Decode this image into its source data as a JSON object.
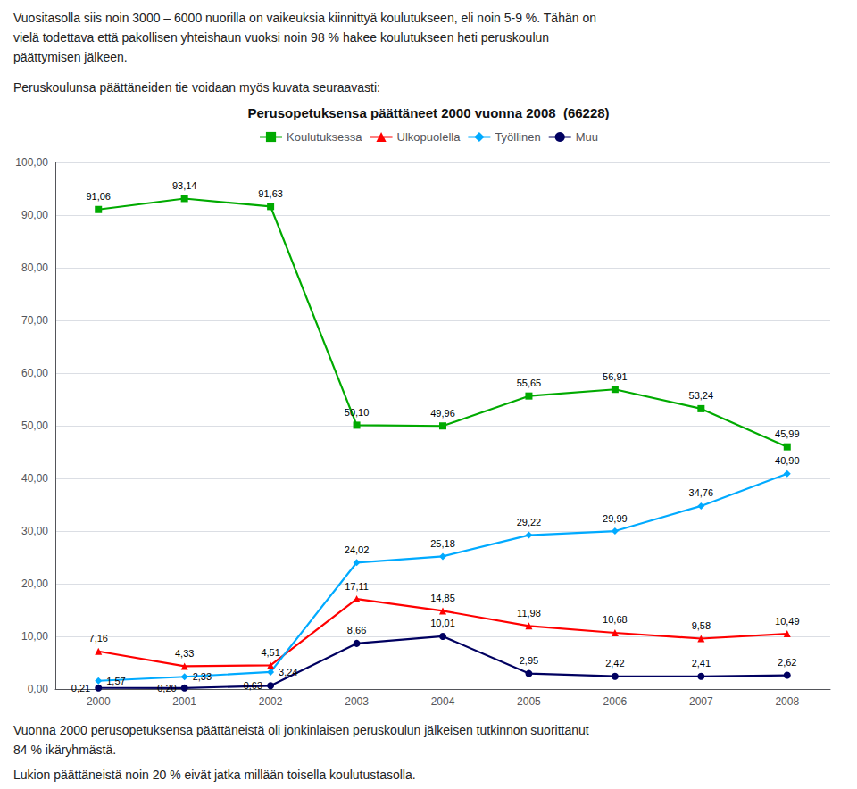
{
  "chart_data": {
    "type": "line",
    "title": "Perusopetuksensa päättäneet 2000 vuonna 2008  (66228)",
    "text_above": [
      "Vuositasolla siis noin 3000 – 6000 nuorilla on vaikeuksia kiinnittyä koulutukseen, eli noin 5-9 %. Tähän on",
      "vielä todettava että pakollisen yhteishaun vuoksi noin 98 % hakee koulutukseen heti peruskoulun",
      "päättymisen jälkeen."
    ],
    "subtitle": "Peruskoulunsa päättäneiden tie voidaan myös kuvata seuraavasti:",
    "text_below": [
      "Vuonna 2000 perusopetuksensa päättäneistä oli jonkinlaisen peruskoulun jälkeisen tutkinnon suorittanut",
      "84 % ikäryhmästä.",
      "Lukion päättäneistä noin 20 % eivät jatka millään toisella koulutustasolla."
    ],
    "categories": [
      "2000",
      "2001",
      "2002",
      "2003",
      "2004",
      "2005",
      "2006",
      "2007",
      "2008"
    ],
    "series": [
      {
        "name": "Koulutuksessa",
        "color": "#00aa00",
        "marker": "square",
        "values": [
          91.06,
          93.14,
          91.63,
          50.1,
          49.96,
          55.65,
          56.91,
          53.24,
          45.99
        ],
        "value_labels": [
          "91,06",
          "93,14",
          "91,63",
          "50,10",
          "49,96",
          "55,65",
          "56,91",
          "53,24",
          "45,99"
        ]
      },
      {
        "name": "Ulkopuolella",
        "color": "#ff0000",
        "marker": "triangle",
        "values": [
          7.16,
          4.33,
          4.51,
          17.11,
          14.85,
          11.98,
          10.68,
          9.58,
          10.49
        ],
        "value_labels": [
          "7,16",
          "4,33",
          "4,51",
          "17,11",
          "14,85",
          "11,98",
          "10,68",
          "9,58",
          "10,49"
        ]
      },
      {
        "name": "Työllinen",
        "color": "#00aaff",
        "marker": "diamond",
        "values": [
          1.57,
          2.33,
          3.24,
          24.02,
          25.18,
          29.22,
          29.99,
          34.76,
          40.9
        ],
        "value_labels": [
          "1,57",
          "2,33",
          "3,24",
          "24,02",
          "25,18",
          "29,22",
          "29,99",
          "34,76",
          "40,90"
        ]
      },
      {
        "name": "Muu",
        "color": "#000060",
        "marker": "circle",
        "values": [
          0.21,
          0.2,
          0.63,
          8.66,
          10.01,
          2.95,
          2.42,
          2.41,
          2.62
        ],
        "value_labels": [
          "0,21",
          "0,20",
          "0,63",
          "8,66",
          "10,01",
          "2,95",
          "2,42",
          "2,41",
          "2,62"
        ]
      }
    ],
    "ylim": [
      0,
      100
    ],
    "yticks": [
      {
        "value": 0,
        "label": "0,00"
      },
      {
        "value": 10,
        "label": "10,00"
      },
      {
        "value": 20,
        "label": "20,00"
      },
      {
        "value": 30,
        "label": "30,00"
      },
      {
        "value": 40,
        "label": "40,00"
      },
      {
        "value": 50,
        "label": "50,00"
      },
      {
        "value": 60,
        "label": "60,00"
      },
      {
        "value": 70,
        "label": "70,00"
      },
      {
        "value": 80,
        "label": "80,00"
      },
      {
        "value": 90,
        "label": "90,00"
      },
      {
        "value": 100,
        "label": "100,00"
      }
    ],
    "grid": true,
    "legend": "top",
    "data_labels": true
  }
}
